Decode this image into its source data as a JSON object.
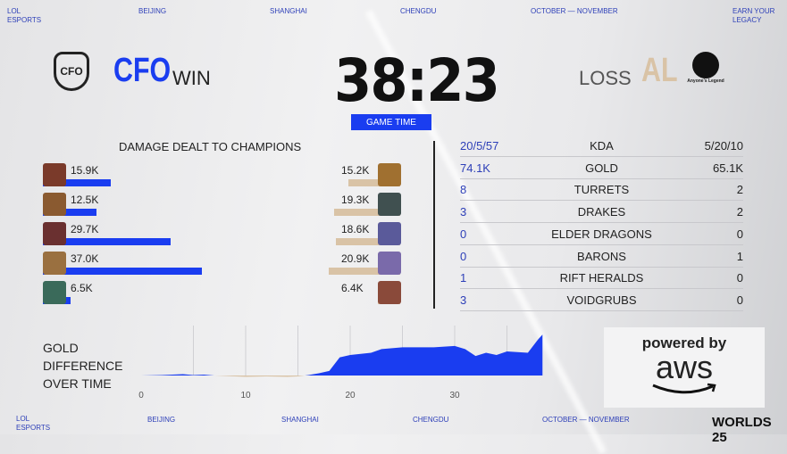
{
  "header": {
    "org": "LOL ESPORTS",
    "cities": [
      "BEIJING",
      "SHANGHAI",
      "CHENGDU"
    ],
    "dates": "OCTOBER — NOVEMBER",
    "tagline": "EARN YOUR LEGACY"
  },
  "footer": {
    "org": "LOL ESPORTS",
    "cities": [
      "BEIJING",
      "SHANGHAI",
      "CHENGDU"
    ],
    "dates": "OCTOBER — NOVEMBER",
    "logo": "WORLDS 25"
  },
  "match": {
    "team_left": {
      "name": "CFO",
      "result": "WIN",
      "logo": "CFO"
    },
    "team_right": {
      "name": "AL",
      "result": "LOSS",
      "logo": "Anyone's Legend"
    },
    "time": "38:23",
    "time_label": "GAME TIME"
  },
  "colors": {
    "blue": "#1a3df0",
    "beige": "#d9c3a6"
  },
  "damage": {
    "title": "DAMAGE DEALT TO CHAMPIONS",
    "left": [
      {
        "label": "15.9K",
        "value": 15900
      },
      {
        "label": "12.5K",
        "value": 12500
      },
      {
        "label": "29.7K",
        "value": 29700
      },
      {
        "label": "37.0K",
        "value": 37000
      },
      {
        "label": "6.5K",
        "value": 6500
      }
    ],
    "right": [
      {
        "label": "15.2K",
        "value": 15200
      },
      {
        "label": "19.3K",
        "value": 19300
      },
      {
        "label": "18.6K",
        "value": 18600
      },
      {
        "label": "20.9K",
        "value": 20900
      },
      {
        "label": "6.4K",
        "value": 6400
      }
    ]
  },
  "stats": [
    {
      "left": "20/5/57",
      "label": "KDA",
      "right": "5/20/10"
    },
    {
      "left": "74.1K",
      "label": "GOLD",
      "right": "65.1K"
    },
    {
      "left": "8",
      "label": "TURRETS",
      "right": "2"
    },
    {
      "left": "3",
      "label": "DRAKES",
      "right": "2"
    },
    {
      "left": "0",
      "label": "ELDER DRAGONS",
      "right": "0"
    },
    {
      "left": "0",
      "label": "BARONS",
      "right": "1"
    },
    {
      "left": "1",
      "label": "RIFT HERALDS",
      "right": "0"
    },
    {
      "left": "3",
      "label": "VOIDGRUBS",
      "right": "0"
    }
  ],
  "chart_data": {
    "type": "area",
    "title": "GOLD DIFFERENCE OVER TIME",
    "xticks": [
      "0",
      "10",
      "20",
      "30"
    ],
    "xlim": [
      0,
      38.4
    ],
    "x": [
      0,
      2,
      4,
      5,
      6,
      7,
      8,
      10,
      12,
      14,
      15,
      16,
      17,
      18,
      19,
      20,
      22,
      23,
      25,
      28,
      30,
      31,
      32,
      33,
      34,
      35,
      37,
      38,
      38.4
    ],
    "y": [
      0,
      100,
      300,
      100,
      200,
      0,
      -100,
      -300,
      -200,
      -300,
      -200,
      100,
      500,
      1000,
      4000,
      4500,
      5000,
      5800,
      6200,
      6200,
      6500,
      5800,
      4300,
      5000,
      4500,
      5300,
      5000,
      8000,
      9000
    ]
  },
  "sponsor": {
    "line1": "powered by",
    "line2": "aws"
  }
}
